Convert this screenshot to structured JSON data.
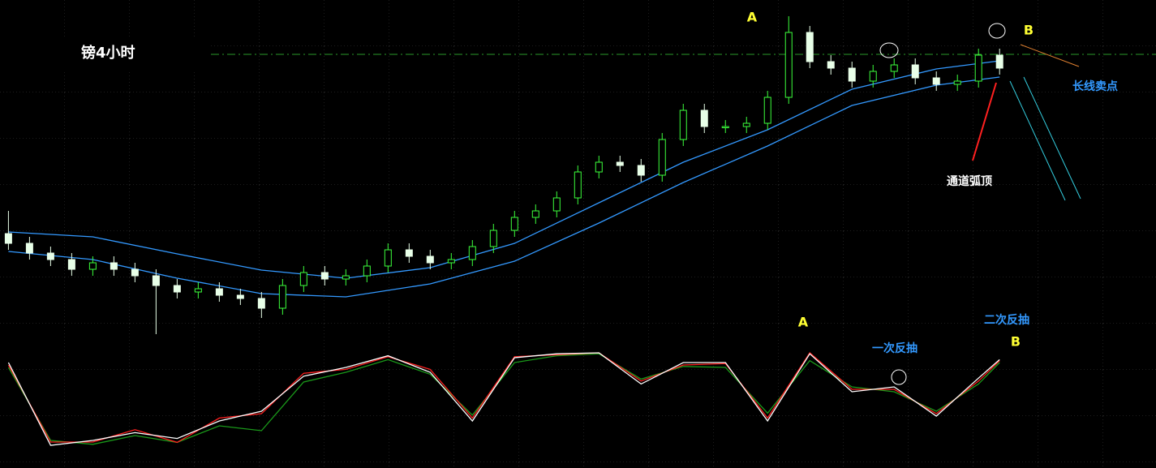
{
  "chart_data": {
    "type": "candlestick",
    "title": "镑4小时",
    "xlim": [
      -0.4,
      47.3
    ],
    "ylim": [
      0,
      100
    ],
    "up_color": "#3cff3c",
    "down_color": "#e8ffe8",
    "open": [
      33,
      30,
      27,
      25,
      22,
      24,
      22,
      20,
      17,
      15,
      16,
      14,
      13,
      10,
      17,
      21,
      19,
      20,
      23,
      28,
      26,
      24,
      25,
      29,
      34,
      38,
      40,
      44,
      52,
      55,
      54,
      51,
      62,
      71,
      66,
      66,
      67,
      75,
      95,
      86,
      84,
      80,
      83,
      85,
      81,
      79,
      80,
      88
    ],
    "high": [
      40,
      32,
      29,
      27,
      26,
      26,
      24,
      22,
      19,
      18,
      18,
      16,
      15,
      19,
      23,
      23,
      22,
      25,
      30,
      30,
      28,
      27,
      31,
      36,
      40,
      42,
      46,
      54,
      57,
      57,
      56,
      64,
      73,
      73,
      68,
      69,
      77,
      100,
      97,
      88,
      86,
      85,
      87,
      87,
      83,
      82,
      90,
      90
    ],
    "low": [
      28,
      25,
      23,
      20,
      20,
      20,
      18,
      2,
      13,
      13,
      12,
      11,
      7,
      8,
      15,
      17,
      17,
      18,
      21,
      24,
      22,
      22,
      23,
      27,
      32,
      36,
      38,
      42,
      50,
      52,
      49,
      49,
      60,
      64,
      64,
      64,
      65,
      73,
      84,
      82,
      78,
      78,
      81,
      79,
      77,
      77,
      78,
      82
    ],
    "close": [
      30,
      27,
      25,
      22,
      24,
      22,
      20,
      17,
      15,
      16,
      14,
      13,
      10,
      17,
      21,
      19,
      20,
      23,
      28,
      26,
      24,
      25,
      29,
      34,
      38,
      40,
      44,
      52,
      55,
      54,
      51,
      62,
      71,
      66,
      66,
      67,
      75,
      95,
      86,
      84,
      80,
      83,
      85,
      81,
      79,
      80,
      88,
      84
    ],
    "channel": {
      "color": "#3399ff",
      "x": [
        0,
        4,
        8,
        12,
        16,
        20,
        24,
        28,
        32,
        36,
        40,
        44,
        47
      ],
      "upper": [
        33.5,
        32,
        26.75,
        21.75,
        19.25,
        22.5,
        30,
        42.5,
        55,
        65,
        77.5,
        83.75,
        86.25
      ],
      "lower": [
        27.5,
        25,
        19.25,
        14.5,
        13.5,
        17.5,
        24.5,
        36.25,
        48.75,
        60,
        72.5,
        78.75,
        81.25
      ]
    },
    "oscillator": {
      "ylim": [
        0,
        100
      ],
      "x": [
        0,
        2,
        4,
        6,
        8,
        10,
        12,
        14,
        16,
        18,
        20,
        22,
        24,
        26,
        28,
        30,
        32,
        34,
        36,
        38,
        40,
        42,
        44,
        46,
        47
      ],
      "series": [
        {
          "color": "#1a9a1a",
          "values": [
            85,
            10,
            6,
            15,
            8,
            25,
            20,
            70,
            80,
            93,
            78,
            36,
            90,
            97,
            99,
            73,
            86,
            85,
            38,
            92,
            65,
            60,
            40,
            68,
            90
          ]
        },
        {
          "color": "#ff2020",
          "values": [
            87.5,
            8.3,
            8.3,
            21,
            8,
            33,
            37.5,
            79,
            83,
            96,
            83,
            33,
            96,
            98,
            100,
            71,
            87.5,
            89,
            33,
            100,
            62.5,
            62.5,
            37.5,
            71,
            92
          ]
        },
        {
          "color": "#ffffff",
          "values": [
            90,
            5,
            10,
            18,
            12,
            30,
            40,
            76,
            85,
            97,
            80,
            30,
            95,
            99,
            100,
            68,
            90,
            90,
            30,
            99,
            60,
            65,
            35,
            74,
            93
          ]
        }
      ]
    },
    "annotations": [
      {
        "text": "A",
        "color": "#ffff33"
      },
      {
        "text": "B",
        "color": "#ffff33"
      },
      {
        "text": "长线卖点",
        "color": "#3399ff"
      },
      {
        "text": "通道弧顶",
        "color": "#ffffff"
      },
      {
        "text": "A",
        "color": "#ffff33"
      },
      {
        "text": "一次反抽",
        "color": "#3399ff"
      },
      {
        "text": "二次反抽",
        "color": "#3399ff"
      },
      {
        "text": "B",
        "color": "#ffff33"
      }
    ]
  }
}
